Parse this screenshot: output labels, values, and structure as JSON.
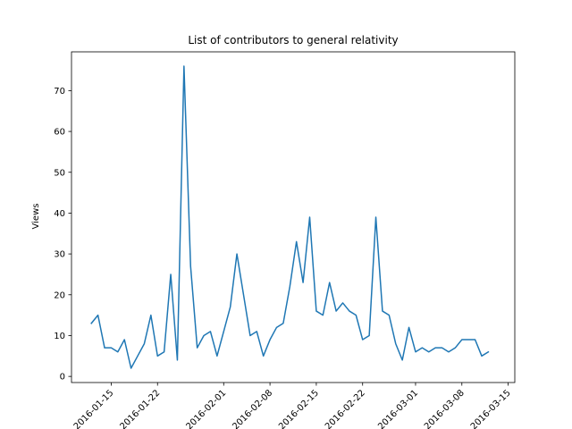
{
  "chart_data": {
    "type": "line",
    "title": "List of contributors to general relativity",
    "xlabel": "",
    "ylabel": "Views",
    "x_start": "2016-01-12",
    "x_tick_dates": [
      "2016-01-15",
      "2016-01-22",
      "2016-02-01",
      "2016-02-08",
      "2016-02-15",
      "2016-02-22",
      "2016-03-01",
      "2016-03-08",
      "2016-03-15"
    ],
    "x_tick_labels": [
      "2016-01-15",
      "2016-01-22",
      "2016-02-01",
      "2016-02-08",
      "2016-02-15",
      "2016-02-22",
      "2016-03-01",
      "2016-03-08",
      "2016-03-15"
    ],
    "xlim": [
      "2016-01-09",
      "2016-03-16"
    ],
    "ylim": [
      -1.5,
      79.5
    ],
    "y_ticks": [
      0,
      10,
      20,
      30,
      40,
      50,
      60,
      70
    ],
    "series": [
      {
        "color": "#1f77b4",
        "values": [
          13,
          15,
          7,
          7,
          6,
          9,
          2,
          5,
          8,
          15,
          5,
          6,
          25,
          4,
          76,
          27,
          7,
          10,
          11,
          5,
          11,
          17,
          30,
          20,
          10,
          11,
          5,
          9,
          12,
          13,
          22,
          33,
          23,
          39,
          16,
          15,
          23,
          16,
          18,
          16,
          15,
          9,
          10,
          39,
          16,
          15,
          8,
          4,
          12,
          6,
          7,
          6,
          7,
          7,
          6,
          7,
          9,
          9,
          9,
          5,
          6
        ]
      }
    ]
  }
}
